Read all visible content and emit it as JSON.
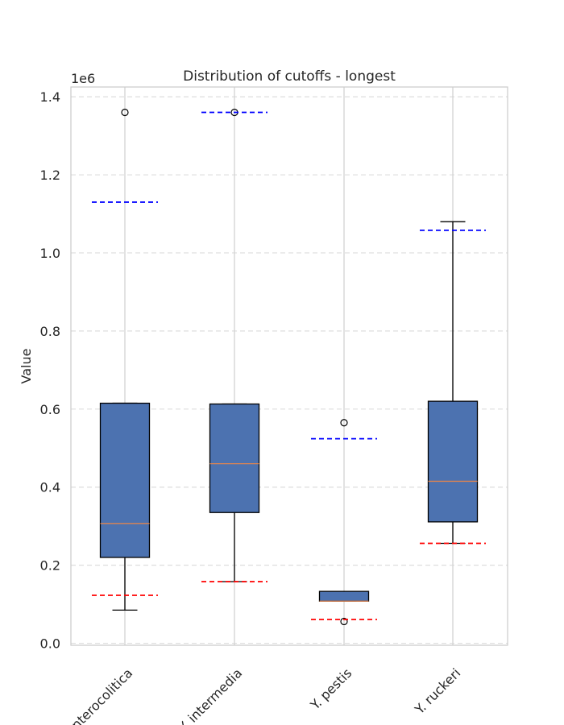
{
  "chart_data": {
    "type": "box",
    "title": "Distribution of cutoffs - longest",
    "xlabel": "",
    "ylabel": "Value",
    "y_offset_label": "1e6",
    "ylim": [
      -5000,
      1425000
    ],
    "yticks": [
      0,
      200000,
      400000,
      600000,
      800000,
      1000000,
      1200000,
      1400000
    ],
    "ytick_labels": [
      "0.0",
      "0.2",
      "0.4",
      "0.6",
      "0.8",
      "1.0",
      "1.2",
      "1.4"
    ],
    "grid": true,
    "box_color": "#4c72b0",
    "median_color": "#dd8452",
    "low_line_color": "#ff0000",
    "high_line_color": "#0000ff",
    "categories": [
      "Y. enterocolitica",
      "Y. intermedia",
      "Y. pestis",
      "Y. ruckeri"
    ],
    "boxes": [
      {
        "whisker_low": 85000,
        "q1": 220000,
        "median": 307000,
        "q3": 615000,
        "whisker_high": 615000,
        "outliers": [
          1360000
        ],
        "low_line": 123000,
        "high_line": 1130000
      },
      {
        "whisker_low": 158000,
        "q1": 335000,
        "median": 460000,
        "q3": 613000,
        "whisker_high": 613000,
        "outliers": [
          1360000
        ],
        "low_line": 158000,
        "high_line": 1360000
      },
      {
        "whisker_low": 108000,
        "q1": 108000,
        "median": 108000,
        "q3": 133000,
        "whisker_high": 133000,
        "outliers": [
          565000,
          56000
        ],
        "low_line": 61000,
        "high_line": 524000
      },
      {
        "whisker_low": 256000,
        "q1": 311000,
        "median": 415000,
        "q3": 620000,
        "whisker_high": 1080000,
        "outliers": [],
        "low_line": 256000,
        "high_line": 1058000
      }
    ]
  }
}
